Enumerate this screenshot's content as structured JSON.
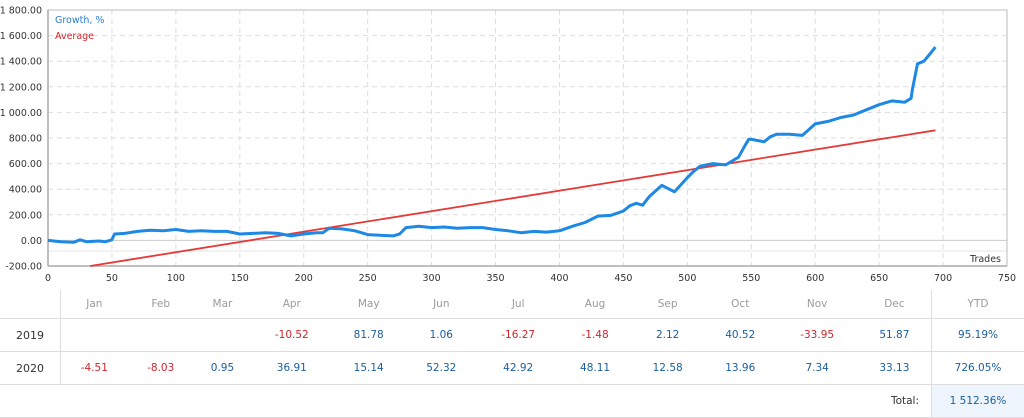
{
  "chart_data": {
    "type": "line",
    "title": "",
    "xlabel": "Trades",
    "ylabel": "",
    "xlim": [
      0,
      750
    ],
    "ylim": [
      -200,
      1800
    ],
    "grid": true,
    "legend": [
      "Growth, %",
      "Average"
    ],
    "legend_position": "top-left",
    "x_ticks": [
      "0",
      "50",
      "100",
      "150",
      "200",
      "250",
      "300",
      "350",
      "400",
      "450",
      "500",
      "550",
      "600",
      "650",
      "700",
      "750"
    ],
    "y_ticks": [
      "-200.00",
      "0.00",
      "200.00",
      "400.00",
      "600.00",
      "800.00",
      "1 000.00",
      "1 200.00",
      "1 400.00",
      "1 600.00",
      "1 800.00"
    ],
    "series": [
      {
        "name": "Growth, %",
        "color": "#1e88e5",
        "x": [
          0,
          10,
          20,
          25,
          30,
          40,
          45,
          50,
          52,
          60,
          70,
          80,
          90,
          100,
          110,
          120,
          130,
          140,
          150,
          160,
          170,
          180,
          190,
          200,
          210,
          215,
          220,
          230,
          240,
          250,
          260,
          270,
          275,
          280,
          290,
          300,
          310,
          320,
          330,
          340,
          350,
          360,
          370,
          380,
          390,
          400,
          410,
          420,
          430,
          440,
          450,
          455,
          460,
          465,
          470,
          480,
          490,
          500,
          505,
          510,
          520,
          530,
          535,
          540,
          545,
          548,
          550,
          560,
          565,
          570,
          580,
          590,
          600,
          610,
          620,
          630,
          640,
          650,
          660,
          670,
          675,
          676,
          680,
          685,
          690,
          694
        ],
        "values": [
          0,
          -10,
          -15,
          5,
          -10,
          -5,
          -10,
          5,
          50,
          55,
          70,
          80,
          75,
          85,
          70,
          75,
          70,
          70,
          50,
          55,
          60,
          55,
          35,
          50,
          60,
          60,
          95,
          90,
          75,
          45,
          40,
          35,
          50,
          100,
          110,
          100,
          105,
          95,
          100,
          100,
          85,
          75,
          60,
          70,
          65,
          75,
          110,
          140,
          190,
          195,
          230,
          270,
          290,
          275,
          340,
          430,
          380,
          490,
          540,
          580,
          600,
          590,
          620,
          650,
          740,
          790,
          790,
          770,
          810,
          830,
          830,
          820,
          910,
          930,
          960,
          980,
          1020,
          1060,
          1090,
          1080,
          1110,
          1180,
          1380,
          1400,
          1460,
          1510
        ]
      },
      {
        "name": "Average",
        "color": "#e53935",
        "x": [
          33,
          694
        ],
        "values": [
          -200,
          860
        ]
      }
    ]
  },
  "table": {
    "months": [
      "Jan",
      "Feb",
      "Mar",
      "Apr",
      "May",
      "Jun",
      "Jul",
      "Aug",
      "Sep",
      "Oct",
      "Nov",
      "Dec"
    ],
    "ytd_label": "YTD",
    "rows": [
      {
        "year": "2019",
        "values": [
          "",
          "",
          "",
          "-10.52",
          "81.78",
          "1.06",
          "-16.27",
          "-1.48",
          "2.12",
          "40.52",
          "-33.95",
          "51.87"
        ],
        "ytd": "95.19%"
      },
      {
        "year": "2020",
        "values": [
          "-4.51",
          "-8.03",
          "0.95",
          "36.91",
          "15.14",
          "52.32",
          "42.92",
          "48.11",
          "12.58",
          "13.96",
          "7.34",
          "33.13"
        ],
        "ytd": "726.05%"
      }
    ],
    "total_label": "Total:",
    "total_value": "1 512.36%"
  },
  "colors": {
    "positive": "#1b5e9e",
    "negative": "#d0242b",
    "growth": "#1e88e5",
    "average": "#e53935"
  }
}
